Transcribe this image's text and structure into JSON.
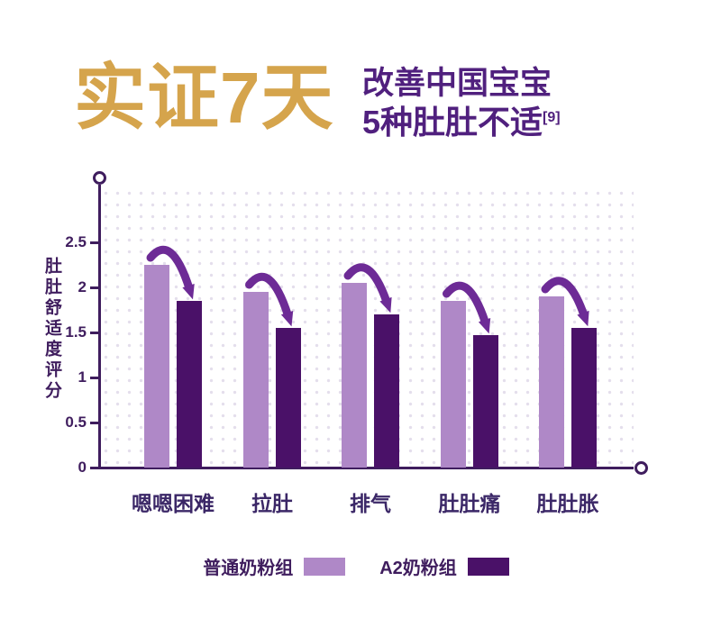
{
  "header": {
    "title_gold": "实证7天",
    "subtitle_line1": "改善中国宝宝",
    "subtitle_line2": "5种肚肚不适",
    "subtitle_sup": "[9]"
  },
  "chart_data": {
    "type": "bar",
    "title": "实证7天改善中国宝宝5种肚肚不适[9]",
    "categories": [
      "嗯嗯困难",
      "拉肚",
      "排气",
      "肚肚痛",
      "肚肚胀"
    ],
    "series": [
      {
        "name": "普通奶粉组",
        "color": "#AF88C7",
        "values": [
          2.25,
          1.95,
          2.05,
          1.85,
          1.9
        ]
      },
      {
        "name": "A2奶粉组",
        "color": "#4A1168",
        "values": [
          1.85,
          1.55,
          1.7,
          1.47,
          1.55
        ]
      }
    ],
    "ylabel": "肚肚舒适度评分",
    "yticks": [
      "0",
      "0.5",
      "1",
      "1.5",
      "2",
      "2.5"
    ],
    "ylim": [
      0,
      2.5
    ],
    "grid": "dotted",
    "legend_position": "bottom",
    "annotations": "curved decrease arrow from 普通奶粉组 bar down to A2奶粉组 bar in every category"
  },
  "colors": {
    "gold": "#D5A44C",
    "title_purple": "#50207E",
    "axis": "#3F1D5E",
    "arrow": "#6D2B96",
    "grid_dot": "#E4DEEC"
  }
}
